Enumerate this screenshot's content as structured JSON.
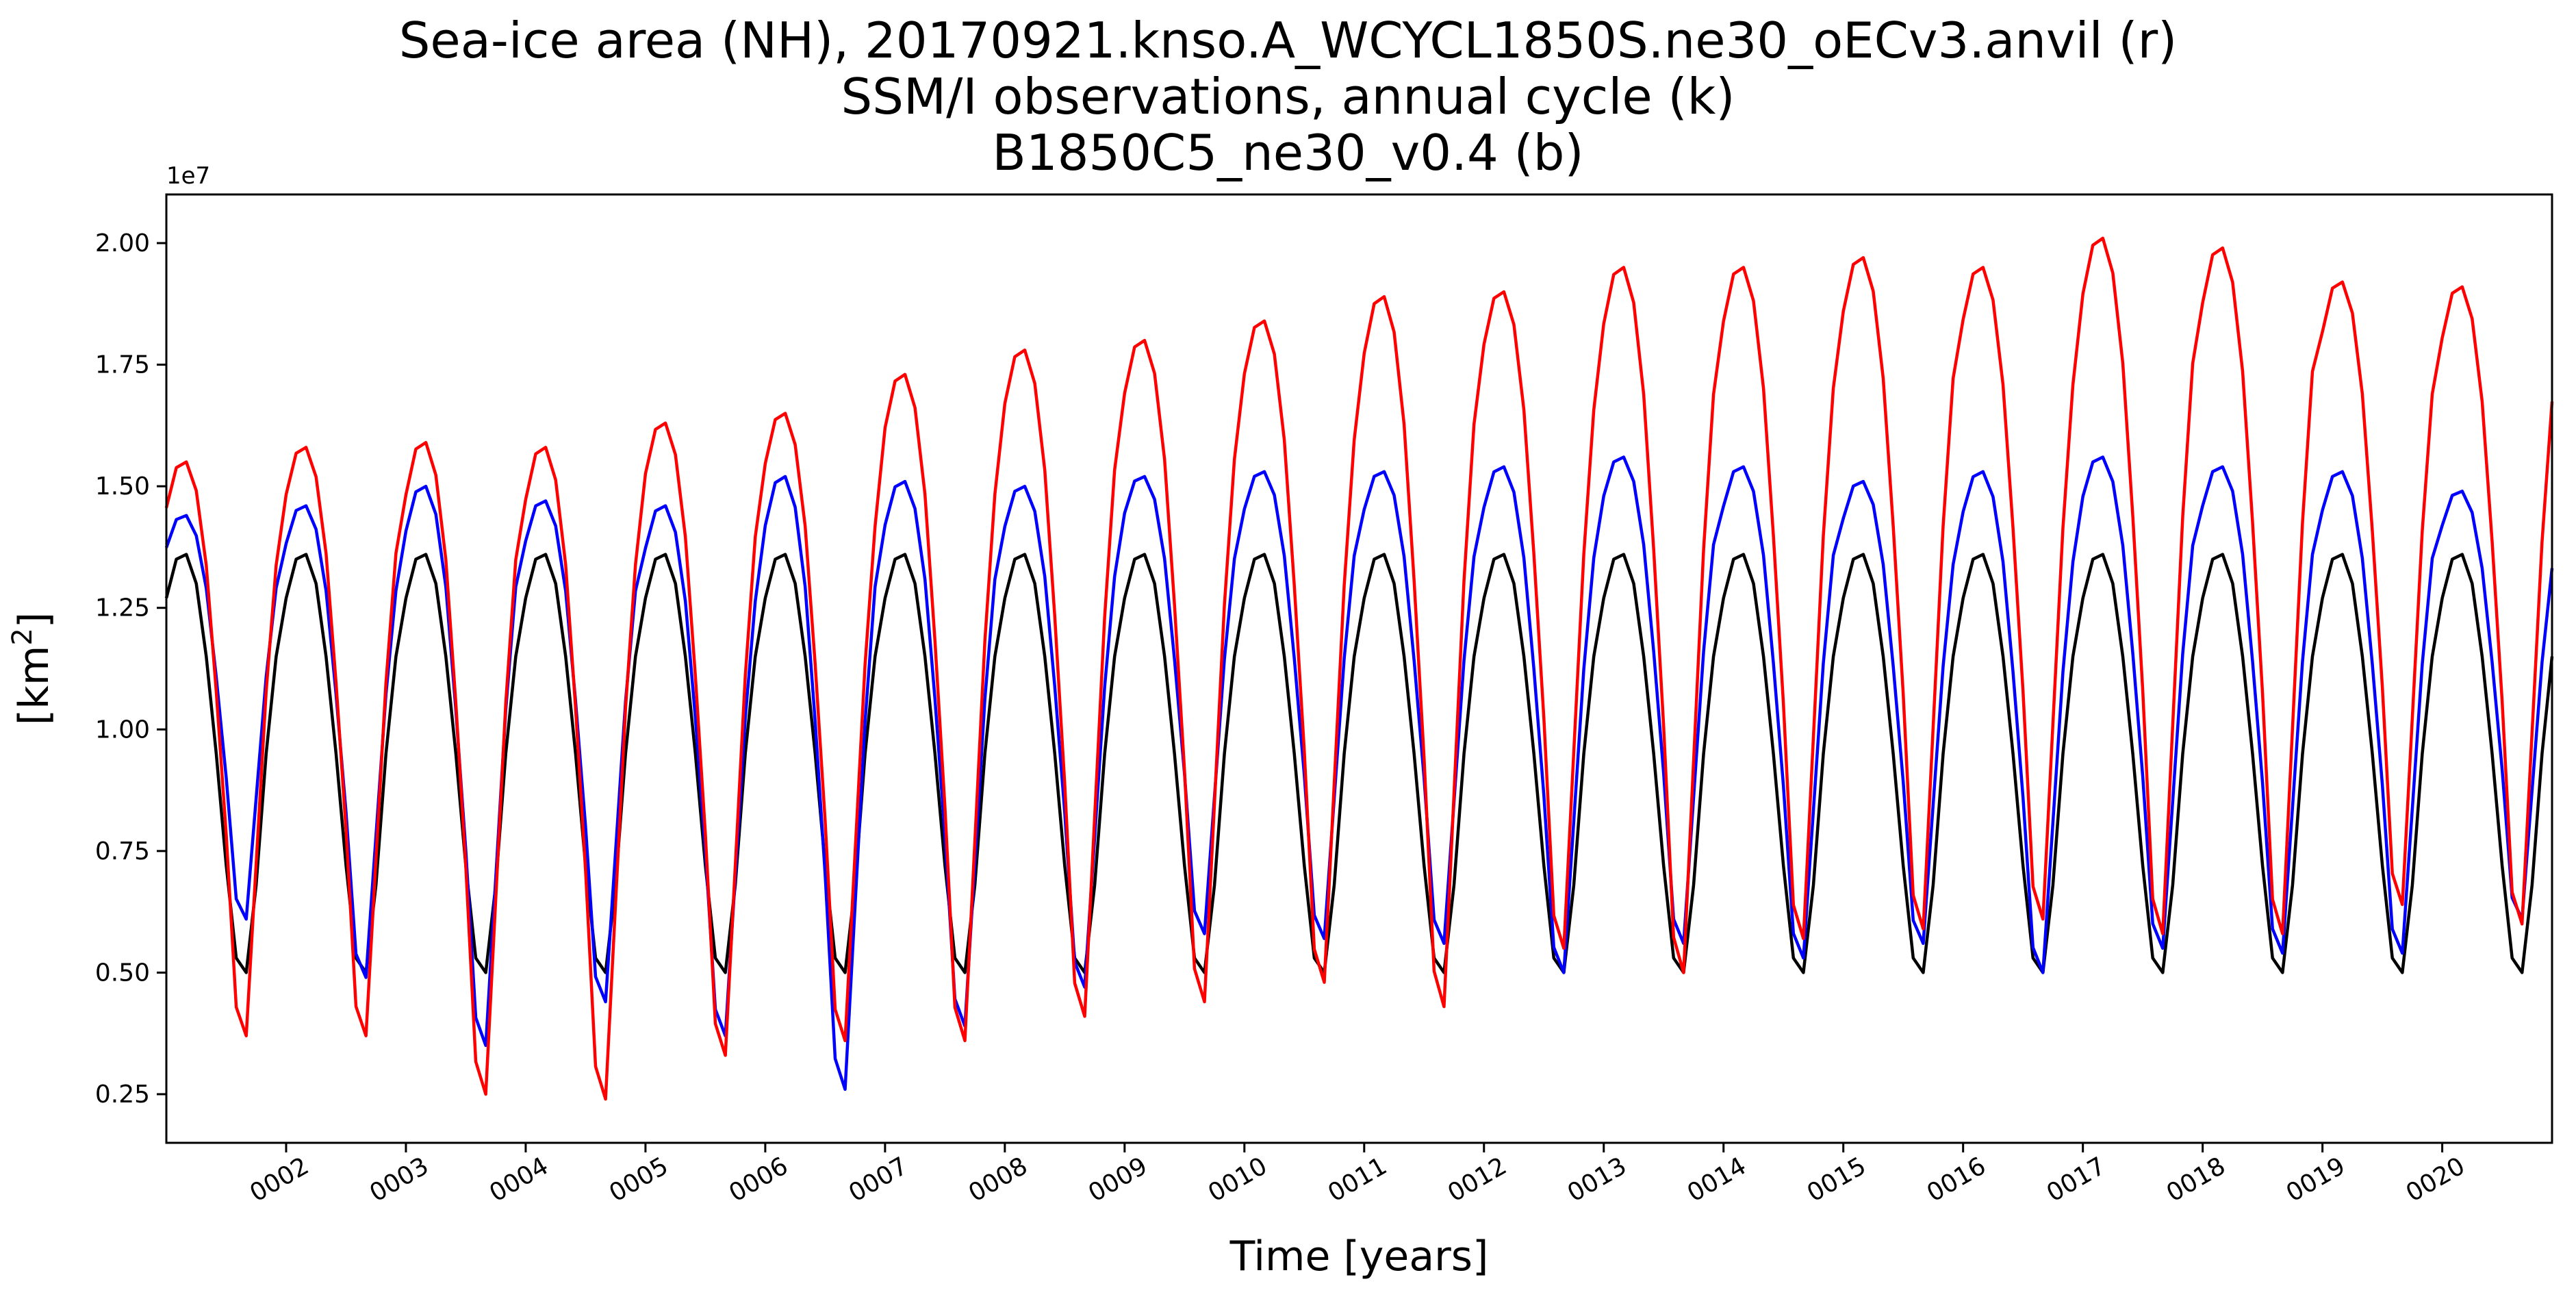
{
  "chart_data": {
    "type": "line",
    "title_lines": [
      "Sea-ice area (NH), 20170921.knso.A_WCYCL1850S.ne30_oECv3.anvil (r)",
      "SSM/I observations, annual cycle (k)",
      "B1850C5_ne30_v0.4 (b)"
    ],
    "xlabel": "Time [years]",
    "ylabel_base": "[km",
    "ylabel_sup": "2",
    "ylabel_end": "]",
    "y_offset_label": "1e7",
    "xlim": [
      1.0,
      20.9167
    ],
    "ylim": [
      0.15,
      2.1
    ],
    "yticks": [
      0.25,
      0.5,
      0.75,
      1.0,
      1.25,
      1.5,
      1.75,
      2.0
    ],
    "ytick_labels": [
      "0.25",
      "0.50",
      "0.75",
      "1.00",
      "1.25",
      "1.50",
      "1.75",
      "2.00"
    ],
    "xticks": [
      2,
      3,
      4,
      5,
      6,
      7,
      8,
      9,
      10,
      11,
      12,
      13,
      14,
      15,
      16,
      17,
      18,
      19,
      20
    ],
    "xtick_labels": [
      "0002",
      "0003",
      "0004",
      "0005",
      "0006",
      "0007",
      "0008",
      "0009",
      "0010",
      "0011",
      "0012",
      "0013",
      "0014",
      "0015",
      "0016",
      "0017",
      "0018",
      "0019",
      "0020"
    ],
    "grid": false,
    "legend": "none",
    "x_note": "one value per month starting at year 1 month 1 (x = year + month/12)",
    "series": [
      {
        "color": "#000000",
        "years": "all",
        "monthly_cycle": [
          1.27,
          1.35,
          1.36,
          1.3,
          1.15,
          0.95,
          0.72,
          0.53,
          0.5,
          0.68,
          0.95,
          1.15
        ]
      },
      {
        "color": "#0000ff",
        "annual_max": [
          1.44,
          1.46,
          1.5,
          1.47,
          1.46,
          1.52,
          1.51,
          1.5,
          1.52,
          1.53,
          1.53,
          1.54,
          1.56,
          1.54,
          1.51,
          1.53,
          1.56,
          1.54,
          1.53,
          1.49
        ],
        "annual_min": [
          0.61,
          0.49,
          0.35,
          0.44,
          0.37,
          0.26,
          0.39,
          0.47,
          0.58,
          0.57,
          0.56,
          0.5,
          0.56,
          0.53,
          0.56,
          0.5,
          0.55,
          0.54,
          0.54,
          0.61
        ]
      },
      {
        "color": "#ff0000",
        "annual_max": [
          1.55,
          1.58,
          1.59,
          1.58,
          1.63,
          1.65,
          1.73,
          1.78,
          1.8,
          1.84,
          1.89,
          1.9,
          1.95,
          1.95,
          1.97,
          1.95,
          2.01,
          1.99,
          1.92,
          1.91
        ],
        "annual_min": [
          0.37,
          0.37,
          0.25,
          0.24,
          0.33,
          0.36,
          0.36,
          0.41,
          0.44,
          0.48,
          0.43,
          0.55,
          0.5,
          0.57,
          0.59,
          0.61,
          0.58,
          0.58,
          0.64,
          0.6
        ]
      }
    ]
  }
}
